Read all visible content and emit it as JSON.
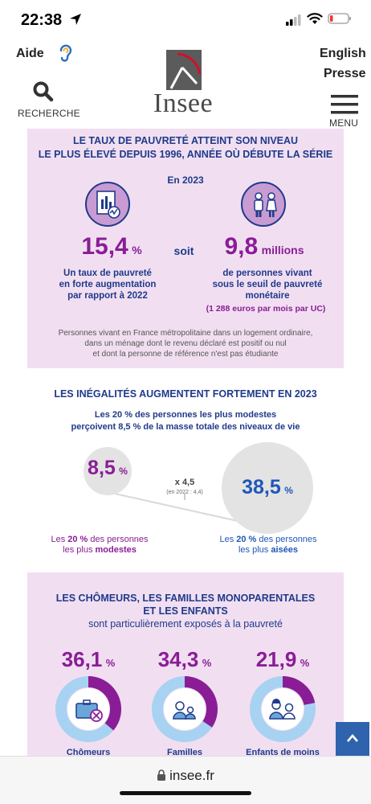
{
  "status": {
    "time": "22:38"
  },
  "header": {
    "help": "Aide",
    "english": "English",
    "press": "Presse",
    "search": "RECHERCHE",
    "menu": "MENU",
    "logo_text": "Insee"
  },
  "section1": {
    "title_line1": "LE TAUX DE PAUVRETÉ ATTEINT SON NIVEAU",
    "title_line2": "LE PLUS ÉLEVÉ DEPUIS 1996, ANNÉE OÙ DÉBUTE LA SÉRIE",
    "year": "En 2023",
    "rate_value": "15,4",
    "rate_unit": "%",
    "soit": "soit",
    "people_value": "9,8",
    "people_unit": "millions",
    "rate_desc_1": "Un taux de pauvreté",
    "rate_desc_2": "en forte augmentation",
    "rate_desc_3": "par rapport à 2022",
    "people_desc_1": "de personnes vivant",
    "people_desc_2": "sous le seuil de pauvreté",
    "people_desc_3": "monétaire",
    "threshold": "(1 288 euros par mois par UC)",
    "note_1": "Personnes vivant en France métropolitaine dans un logement ordinaire,",
    "note_2": "dans un ménage dont le revenu déclaré est positif ou nul",
    "note_3": "et dont la personne de référence n'est pas étudiante"
  },
  "section2": {
    "title": "LES INÉGALITÉS AUGMENTENT FORTEMENT EN 2023",
    "sub_1": "Les 20 % des personnes les plus modestes",
    "sub_2": "perçoivent 8,5 % de la masse totale des niveaux de vie",
    "low_value": "8,5",
    "low_unit": "%",
    "high_value": "38,5",
    "high_unit": "%",
    "ratio": "x 4,5",
    "ratio_note": "(en 2022 : 4,4)",
    "low_lbl_1a": "Les ",
    "low_lbl_1b": "20 %",
    "low_lbl_1c": " des personnes",
    "low_lbl_2a": "les plus ",
    "low_lbl_2b": "modestes",
    "high_lbl_1a": "Les ",
    "high_lbl_1b": "20 %",
    "high_lbl_1c": " des personnes",
    "high_lbl_2a": "les plus ",
    "high_lbl_2b": "aisées"
  },
  "section3": {
    "title_1": "LES CHÔMEURS, LES FAMILLES MONOPARENTALES",
    "title_2": "ET LES ENFANTS",
    "title_3": "sont particulièrement exposés à la pauvreté",
    "items": [
      {
        "value": "36,1",
        "unit": "%",
        "label": "Chômeurs",
        "share": 0.361
      },
      {
        "value": "34,3",
        "unit": "%",
        "label": "Familles",
        "share": 0.343
      },
      {
        "value": "21,9",
        "unit": "%",
        "label": "Enfants de moins",
        "share": 0.219
      }
    ]
  },
  "footer": {
    "url": "insee.fr"
  },
  "colors": {
    "purple": "#8a1d96",
    "blue": "#1f57b8",
    "navy": "#1f3a8a",
    "lilac": "#f1dff1",
    "ring_light": "#a8d2f2"
  }
}
